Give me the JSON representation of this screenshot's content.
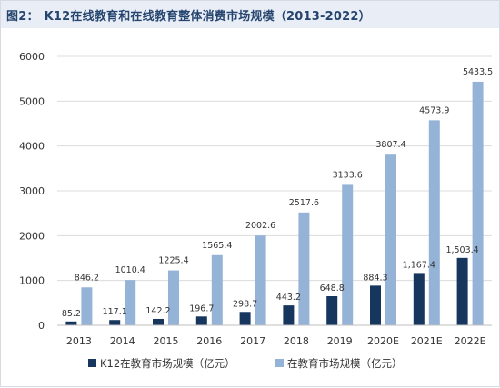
{
  "title": {
    "figure": "图2：",
    "text": "K12在线教育和在线教育整体消费市场规模（2013-2022）"
  },
  "chart_data": {
    "type": "bar",
    "title": "K12在线教育和在线教育整体消费市场规模（2013-2022）",
    "categories": [
      "2013",
      "2014",
      "2015",
      "2016",
      "2017",
      "2018",
      "2019",
      "2020E",
      "2021E",
      "2022E"
    ],
    "series": [
      {
        "name": "K12在教育市场规模（亿元）",
        "color": "#17365d",
        "values": [
          85.2,
          117.1,
          142.2,
          196.7,
          298.7,
          443.2,
          648.8,
          884.3,
          1167.4,
          1503.4
        ],
        "labels": [
          "85.2",
          "117.1",
          "142.2",
          "196.7",
          "298.7",
          "443.2",
          "648.8",
          "884.3",
          "1,167.4",
          "1,503.4"
        ]
      },
      {
        "name": "在教育市场规模（亿元）",
        "color": "#95b3d7",
        "values": [
          846.2,
          1010.4,
          1225.4,
          1565.4,
          2002.6,
          2517.6,
          3133.6,
          3807.4,
          4573.9,
          5433.5
        ],
        "labels": [
          "846.2",
          "1010.4",
          "1225.4",
          "1565.4",
          "2002.6",
          "2517.6",
          "3133.6",
          "3807.4",
          "4573.9",
          "5433.5"
        ]
      }
    ],
    "ylim": [
      0,
      6000
    ],
    "yticks": [
      0,
      1000,
      2000,
      3000,
      4000,
      5000,
      6000
    ],
    "grid": true,
    "legend": "bottom"
  }
}
